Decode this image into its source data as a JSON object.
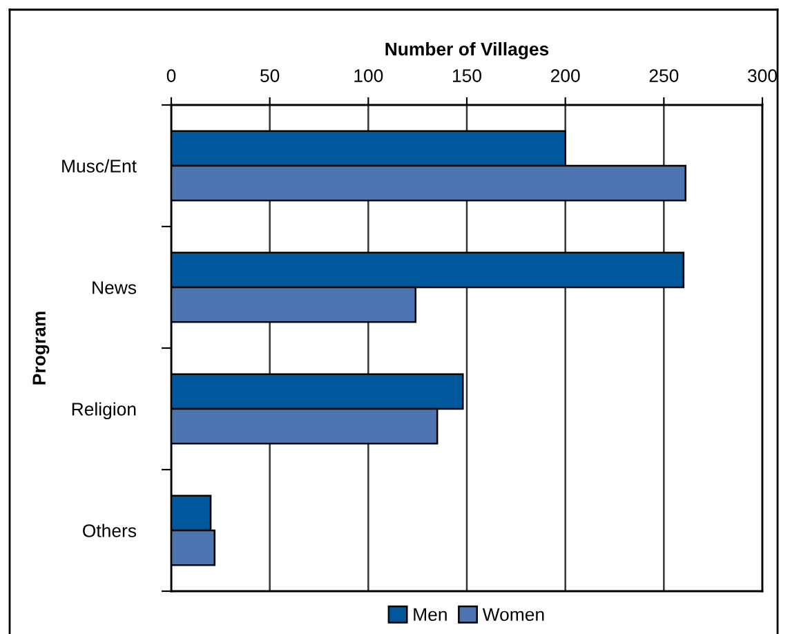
{
  "chart_data": {
    "type": "bar",
    "orientation": "horizontal",
    "xlabel": "Number of Villages",
    "ylabel": "Program",
    "categories": [
      "Musc/Ent",
      "News",
      "Religion",
      "Others"
    ],
    "series": [
      {
        "name": "Men",
        "color": "#00589c",
        "values": [
          200,
          260,
          148,
          20
        ]
      },
      {
        "name": "Women",
        "color": "#4f74b2",
        "values": [
          261,
          124,
          135,
          22
        ]
      }
    ],
    "xlim": [
      0,
      300
    ],
    "xticks": [
      0,
      50,
      100,
      150,
      200,
      250,
      300
    ],
    "grid": "x",
    "legend": "bottom"
  }
}
